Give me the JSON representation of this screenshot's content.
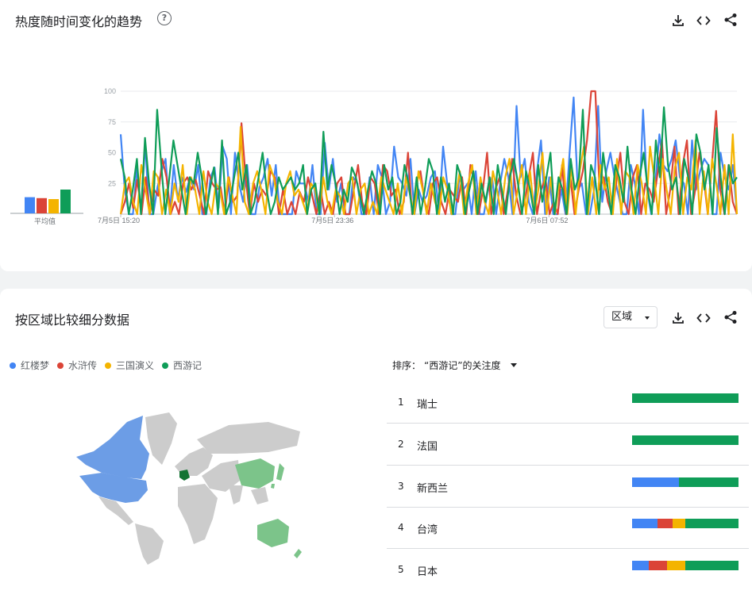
{
  "colors": {
    "series_blue": "#4285f4",
    "series_red": "#db4437",
    "series_yellow": "#f4b400",
    "series_green": "#0f9d58",
    "map_blue": "#6c9de6",
    "map_green": "#7cc48a",
    "map_dark_green": "#137333",
    "map_grey": "#cccccc"
  },
  "trend": {
    "title": "热度随时间变化的趋势",
    "help_icon": "question-circle-icon",
    "download_icon": "download-icon",
    "embed_icon": "code-icon",
    "share_icon": "share-icon",
    "average_label": "平均值"
  },
  "chart_data": {
    "type": "line",
    "x_tick_labels": [
      "7月5日 15:20",
      "7月5日 23:36",
      "7月6日 07:52"
    ],
    "y_tick_labels": [
      "100",
      "75",
      "50",
      "25"
    ],
    "ylim": [
      0,
      100
    ],
    "grid": true,
    "averages": [
      {
        "series": "红楼梦",
        "value": 17
      },
      {
        "series": "水浒传",
        "value": 16
      },
      {
        "series": "三国演义",
        "value": 15
      },
      {
        "series": "西游记",
        "value": 25
      }
    ],
    "series": [
      {
        "name": "红楼梦",
        "color": "#4285f4",
        "values": [
          65,
          20,
          0,
          0,
          38,
          0,
          58,
          0,
          0,
          22,
          35,
          45,
          0,
          40,
          12,
          30,
          18,
          30,
          20,
          40,
          0,
          0,
          30,
          38,
          5,
          55,
          45,
          0,
          50,
          25,
          10,
          40,
          0,
          0,
          22,
          30,
          45,
          15,
          40,
          0,
          0,
          0,
          0,
          35,
          25,
          25,
          10,
          40,
          0,
          0,
          58,
          20,
          45,
          10,
          25,
          0,
          0,
          30,
          25,
          0,
          0,
          30,
          0,
          40,
          30,
          0,
          10,
          55,
          30,
          25,
          15,
          45,
          0,
          20,
          10,
          15,
          30,
          35,
          0,
          55,
          25,
          0,
          0,
          30,
          20,
          25,
          0,
          35,
          0,
          0,
          20,
          30,
          0,
          25,
          45,
          30,
          0,
          88,
          30,
          45,
          10,
          0,
          35,
          60,
          0,
          30,
          0,
          0,
          20,
          0,
          50,
          95,
          20,
          25,
          0,
          0,
          20,
          88,
          10,
          35,
          50,
          30,
          15,
          0,
          0,
          40,
          25,
          0,
          85,
          20,
          0,
          25,
          65,
          40,
          35,
          45,
          60,
          30,
          25,
          0,
          60,
          20,
          35,
          45,
          40,
          0,
          0,
          50,
          30,
          20,
          40,
          0
        ]
      },
      {
        "series_note": "",
        "name": "水浒传",
        "color": "#db4437",
        "values": [
          0,
          10,
          25,
          5,
          28,
          0,
          30,
          0,
          20,
          15,
          45,
          30,
          0,
          10,
          0,
          25,
          30,
          20,
          28,
          15,
          0,
          35,
          25,
          20,
          22,
          0,
          30,
          10,
          15,
          74,
          30,
          0,
          25,
          10,
          20,
          15,
          35,
          30,
          0,
          20,
          0,
          10,
          0,
          18,
          10,
          30,
          15,
          0,
          20,
          0,
          10,
          0,
          25,
          30,
          0,
          0,
          20,
          40,
          10,
          0,
          30,
          25,
          0,
          40,
          35,
          15,
          20,
          0,
          10,
          50,
          0,
          25,
          35,
          10,
          0,
          25,
          30,
          10,
          0,
          20,
          15,
          10,
          30,
          0,
          40,
          25,
          0,
          20,
          50,
          0,
          20,
          30,
          0,
          20,
          45,
          15,
          0,
          10,
          30,
          50,
          0,
          20,
          30,
          0,
          10,
          0,
          40,
          0,
          30,
          0,
          20,
          35,
          60,
          100,
          100,
          20,
          30,
          10,
          0,
          25,
          50,
          10,
          0,
          30,
          40,
          0,
          25,
          20,
          10,
          35,
          60,
          0,
          20,
          55,
          0,
          40,
          60,
          0,
          20,
          50,
          30,
          0,
          40,
          84,
          20,
          0,
          40,
          10,
          0
        ]
      },
      {
        "series_note": "",
        "name": "三国演义",
        "color": "#f4b400",
        "values": [
          0,
          25,
          30,
          10,
          0,
          40,
          20,
          0,
          35,
          30,
          0,
          20,
          0,
          25,
          10,
          40,
          0,
          30,
          20,
          0,
          35,
          10,
          0,
          25,
          20,
          0,
          30,
          15,
          0,
          71,
          10,
          0,
          25,
          35,
          20,
          0,
          40,
          30,
          10,
          0,
          25,
          35,
          15,
          20,
          10,
          0,
          25,
          20,
          0,
          30,
          10,
          0,
          20,
          15,
          0,
          25,
          30,
          0,
          20,
          25,
          0,
          10,
          0,
          30,
          20,
          10,
          0,
          25,
          0,
          30,
          15,
          0,
          35,
          20,
          0,
          25,
          10,
          0,
          30,
          20,
          0,
          15,
          35,
          0,
          25,
          40,
          0,
          30,
          10,
          0,
          35,
          20,
          0,
          30,
          45,
          0,
          20,
          40,
          0,
          35,
          0,
          20,
          50,
          0,
          30,
          0,
          25,
          45,
          0,
          40,
          0,
          35,
          55,
          0,
          30,
          0,
          40,
          20,
          30,
          0,
          45,
          0,
          35,
          30,
          0,
          40,
          25,
          0,
          55,
          30,
          0,
          45,
          20,
          0,
          38,
          50,
          0,
          30,
          20,
          60,
          0,
          35,
          0,
          45,
          25,
          0,
          40,
          0,
          65,
          0
        ]
      },
      {
        "series_note": "",
        "name": "西游记",
        "color": "#0f9d58",
        "values": [
          45,
          30,
          0,
          20,
          45,
          0,
          62,
          25,
          0,
          85,
          40,
          0,
          30,
          60,
          40,
          20,
          0,
          30,
          25,
          50,
          30,
          0,
          20,
          38,
          0,
          60,
          0,
          10,
          30,
          50,
          20,
          40,
          0,
          10,
          30,
          50,
          20,
          0,
          10,
          30,
          20,
          25,
          30,
          20,
          25,
          40,
          0,
          20,
          25,
          0,
          67,
          20,
          40,
          25,
          0,
          20,
          10,
          38,
          30,
          15,
          0,
          20,
          35,
          25,
          0,
          40,
          20,
          30,
          0,
          10,
          40,
          25,
          0,
          30,
          0,
          20,
          45,
          35,
          0,
          30,
          10,
          25,
          0,
          40,
          30,
          0,
          20,
          35,
          0,
          25,
          10,
          30,
          0,
          40,
          20,
          0,
          30,
          45,
          25,
          0,
          35,
          20,
          0,
          40,
          10,
          30,
          50,
          0,
          30,
          20,
          0,
          45,
          20,
          30,
          85,
          0,
          40,
          30,
          0,
          50,
          25,
          0,
          40,
          30,
          10,
          55,
          20,
          0,
          30,
          50,
          20,
          0,
          60,
          30,
          87,
          40,
          20,
          30,
          0,
          45,
          30,
          0,
          65,
          50,
          20,
          40,
          0,
          70,
          30,
          0,
          40,
          25,
          30
        ]
      }
    ]
  },
  "region": {
    "title": "按区域比较细分数据",
    "select_value": "区域",
    "download_icon": "download-icon",
    "embed_icon": "code-icon",
    "share_icon": "share-icon",
    "legend": [
      {
        "label": "红楼梦",
        "color": "#4285f4"
      },
      {
        "label": "水浒传",
        "color": "#db4437"
      },
      {
        "label": "三国演义",
        "color": "#f4b400"
      },
      {
        "label": "西游记",
        "color": "#0f9d58"
      }
    ],
    "sort_label": "排序：",
    "sort_value": "“西游记”的关注度",
    "rankings": [
      {
        "rank": "1",
        "name": "瑞士",
        "shares": [
          0,
          0,
          0,
          100
        ]
      },
      {
        "rank": "2",
        "name": "法国",
        "shares": [
          0,
          0,
          0,
          100
        ]
      },
      {
        "rank": "3",
        "name": "新西兰",
        "shares": [
          44,
          0,
          0,
          56
        ]
      },
      {
        "rank": "4",
        "name": "台湾",
        "shares": [
          24,
          14,
          12,
          50
        ]
      },
      {
        "rank": "5",
        "name": "日本",
        "shares": [
          16,
          17,
          17,
          50
        ]
      }
    ]
  }
}
